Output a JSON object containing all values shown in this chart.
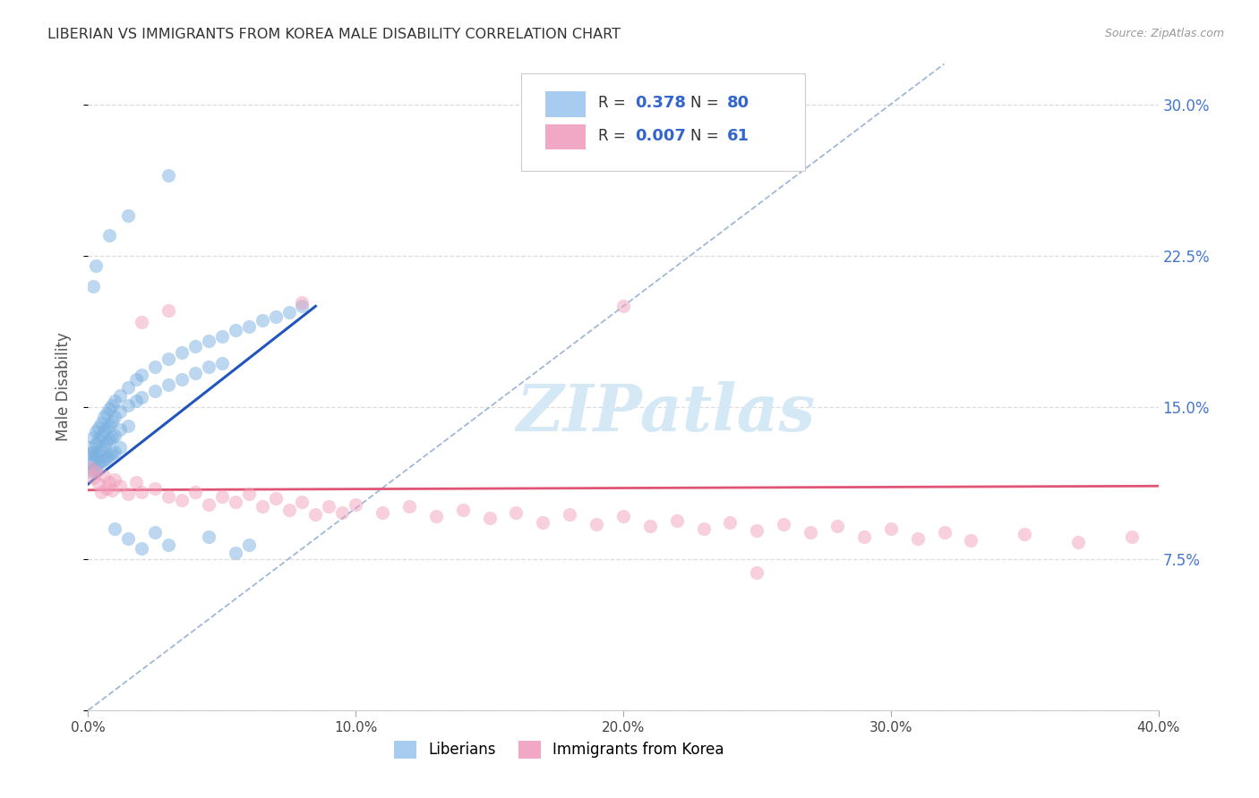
{
  "title": "LIBERIAN VS IMMIGRANTS FROM KOREA MALE DISABILITY CORRELATION CHART",
  "source": "Source: ZipAtlas.com",
  "ylabel": "Male Disability",
  "xlim": [
    0.0,
    0.4
  ],
  "ylim": [
    0.0,
    0.32
  ],
  "xticks": [
    0.0,
    0.1,
    0.2,
    0.3,
    0.4
  ],
  "xtick_labels": [
    "0.0%",
    "10.0%",
    "20.0%",
    "30.0%",
    "40.0%"
  ],
  "yticks": [
    0.0,
    0.075,
    0.15,
    0.225,
    0.3
  ],
  "ytick_labels": [
    "",
    "7.5%",
    "15.0%",
    "22.5%",
    "30.0%"
  ],
  "blue_color": "#7ab0e0",
  "pink_color": "#f0a0bc",
  "blue_line_color": "#2255bb",
  "pink_line_color": "#e05575",
  "diagonal_color": "#a0b8d8",
  "watermark_color": "#d5e8f5",
  "blue_dots": [
    [
      0.001,
      0.13
    ],
    [
      0.001,
      0.127
    ],
    [
      0.001,
      0.122
    ],
    [
      0.001,
      0.118
    ],
    [
      0.002,
      0.135
    ],
    [
      0.002,
      0.128
    ],
    [
      0.002,
      0.124
    ],
    [
      0.002,
      0.119
    ],
    [
      0.003,
      0.138
    ],
    [
      0.003,
      0.132
    ],
    [
      0.003,
      0.126
    ],
    [
      0.003,
      0.12
    ],
    [
      0.004,
      0.14
    ],
    [
      0.004,
      0.134
    ],
    [
      0.004,
      0.128
    ],
    [
      0.004,
      0.122
    ],
    [
      0.005,
      0.142
    ],
    [
      0.005,
      0.136
    ],
    [
      0.005,
      0.129
    ],
    [
      0.005,
      0.123
    ],
    [
      0.006,
      0.145
    ],
    [
      0.006,
      0.138
    ],
    [
      0.006,
      0.131
    ],
    [
      0.006,
      0.124
    ],
    [
      0.007,
      0.147
    ],
    [
      0.007,
      0.14
    ],
    [
      0.007,
      0.133
    ],
    [
      0.007,
      0.125
    ],
    [
      0.008,
      0.149
    ],
    [
      0.008,
      0.141
    ],
    [
      0.008,
      0.134
    ],
    [
      0.008,
      0.126
    ],
    [
      0.009,
      0.151
    ],
    [
      0.009,
      0.143
    ],
    [
      0.009,
      0.135
    ],
    [
      0.009,
      0.127
    ],
    [
      0.01,
      0.153
    ],
    [
      0.01,
      0.145
    ],
    [
      0.01,
      0.136
    ],
    [
      0.01,
      0.128
    ],
    [
      0.012,
      0.156
    ],
    [
      0.012,
      0.148
    ],
    [
      0.012,
      0.139
    ],
    [
      0.012,
      0.13
    ],
    [
      0.015,
      0.16
    ],
    [
      0.015,
      0.151
    ],
    [
      0.015,
      0.141
    ],
    [
      0.018,
      0.164
    ],
    [
      0.018,
      0.153
    ],
    [
      0.02,
      0.166
    ],
    [
      0.02,
      0.155
    ],
    [
      0.025,
      0.17
    ],
    [
      0.025,
      0.158
    ],
    [
      0.03,
      0.174
    ],
    [
      0.03,
      0.161
    ],
    [
      0.035,
      0.177
    ],
    [
      0.035,
      0.164
    ],
    [
      0.04,
      0.18
    ],
    [
      0.04,
      0.167
    ],
    [
      0.045,
      0.183
    ],
    [
      0.045,
      0.17
    ],
    [
      0.05,
      0.185
    ],
    [
      0.05,
      0.172
    ],
    [
      0.055,
      0.188
    ],
    [
      0.06,
      0.19
    ],
    [
      0.065,
      0.193
    ],
    [
      0.07,
      0.195
    ],
    [
      0.075,
      0.197
    ],
    [
      0.08,
      0.2
    ],
    [
      0.002,
      0.21
    ],
    [
      0.003,
      0.22
    ],
    [
      0.008,
      0.235
    ],
    [
      0.015,
      0.245
    ],
    [
      0.03,
      0.265
    ],
    [
      0.01,
      0.09
    ],
    [
      0.015,
      0.085
    ],
    [
      0.02,
      0.08
    ],
    [
      0.025,
      0.088
    ],
    [
      0.03,
      0.082
    ],
    [
      0.045,
      0.086
    ],
    [
      0.055,
      0.078
    ],
    [
      0.06,
      0.082
    ]
  ],
  "pink_dots": [
    [
      0.001,
      0.12
    ],
    [
      0.002,
      0.115
    ],
    [
      0.003,
      0.118
    ],
    [
      0.004,
      0.112
    ],
    [
      0.005,
      0.108
    ],
    [
      0.006,
      0.116
    ],
    [
      0.007,
      0.11
    ],
    [
      0.008,
      0.113
    ],
    [
      0.009,
      0.109
    ],
    [
      0.01,
      0.114
    ],
    [
      0.012,
      0.111
    ],
    [
      0.015,
      0.107
    ],
    [
      0.018,
      0.113
    ],
    [
      0.02,
      0.108
    ],
    [
      0.025,
      0.11
    ],
    [
      0.03,
      0.106
    ],
    [
      0.035,
      0.104
    ],
    [
      0.04,
      0.108
    ],
    [
      0.045,
      0.102
    ],
    [
      0.05,
      0.106
    ],
    [
      0.055,
      0.103
    ],
    [
      0.06,
      0.107
    ],
    [
      0.065,
      0.101
    ],
    [
      0.07,
      0.105
    ],
    [
      0.075,
      0.099
    ],
    [
      0.08,
      0.103
    ],
    [
      0.085,
      0.097
    ],
    [
      0.09,
      0.101
    ],
    [
      0.095,
      0.098
    ],
    [
      0.1,
      0.102
    ],
    [
      0.11,
      0.098
    ],
    [
      0.12,
      0.101
    ],
    [
      0.13,
      0.096
    ],
    [
      0.14,
      0.099
    ],
    [
      0.15,
      0.095
    ],
    [
      0.16,
      0.098
    ],
    [
      0.17,
      0.093
    ],
    [
      0.18,
      0.097
    ],
    [
      0.19,
      0.092
    ],
    [
      0.2,
      0.096
    ],
    [
      0.21,
      0.091
    ],
    [
      0.22,
      0.094
    ],
    [
      0.23,
      0.09
    ],
    [
      0.24,
      0.093
    ],
    [
      0.25,
      0.089
    ],
    [
      0.26,
      0.092
    ],
    [
      0.27,
      0.088
    ],
    [
      0.28,
      0.091
    ],
    [
      0.29,
      0.086
    ],
    [
      0.3,
      0.09
    ],
    [
      0.31,
      0.085
    ],
    [
      0.32,
      0.088
    ],
    [
      0.33,
      0.084
    ],
    [
      0.35,
      0.087
    ],
    [
      0.37,
      0.083
    ],
    [
      0.39,
      0.086
    ],
    [
      0.02,
      0.192
    ],
    [
      0.03,
      0.198
    ],
    [
      0.08,
      0.202
    ],
    [
      0.2,
      0.2
    ],
    [
      0.25,
      0.068
    ]
  ],
  "blue_line_x": [
    0.0,
    0.085
  ],
  "blue_line_y": [
    0.112,
    0.2
  ],
  "diag_line_x": [
    0.0,
    0.32
  ],
  "diag_line_y": [
    0.0,
    0.32
  ],
  "pink_line_x": [
    0.0,
    0.4
  ],
  "pink_line_y": [
    0.109,
    0.111
  ]
}
